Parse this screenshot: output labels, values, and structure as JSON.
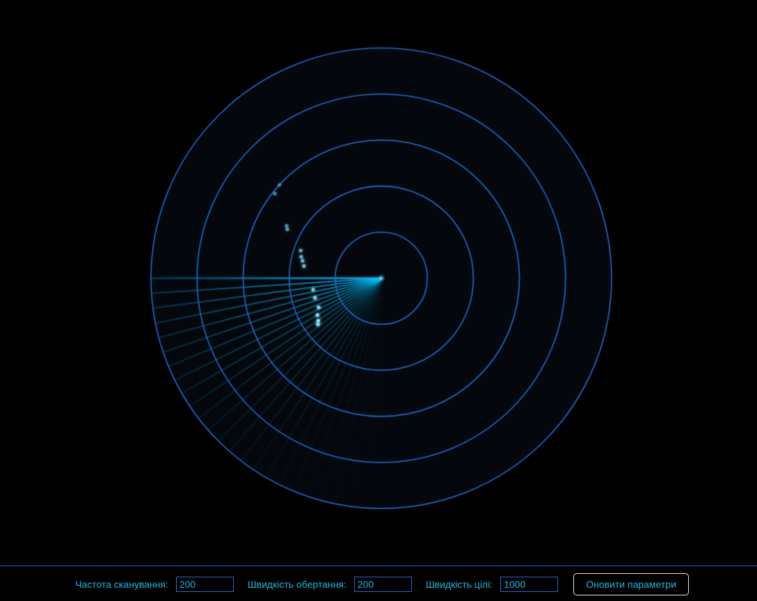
{
  "radar": {
    "ring_color": "#1e6fd9",
    "sweep_color": "#00bfff",
    "target_color": "#7fe4ff",
    "background": "#000000",
    "ring_count": 5,
    "sweep_heading_deg": 180,
    "sweep_trail_deg": 90,
    "sweep_ray_count": 24,
    "target_blips": [
      {
        "bearing_deg": 222.5,
        "range_frac": 0.6,
        "age": 0.9
      },
      {
        "bearing_deg": 218.5,
        "range_frac": 0.59,
        "age": 0.78
      },
      {
        "bearing_deg": 209.0,
        "range_frac": 0.47,
        "age": 0.7
      },
      {
        "bearing_deg": 207.5,
        "range_frac": 0.46,
        "age": 0.62
      },
      {
        "bearing_deg": 199.0,
        "range_frac": 0.37,
        "age": 0.52
      },
      {
        "bearing_deg": 195.0,
        "range_frac": 0.36,
        "age": 0.48
      },
      {
        "bearing_deg": 192.5,
        "range_frac": 0.35,
        "age": 0.42
      },
      {
        "bearing_deg": 189.0,
        "range_frac": 0.34,
        "age": 0.36
      },
      {
        "bearing_deg": 170.5,
        "range_frac": 0.3,
        "age": 0.28
      },
      {
        "bearing_deg": 163.5,
        "range_frac": 0.3,
        "age": 0.2
      },
      {
        "bearing_deg": 155.0,
        "range_frac": 0.3,
        "age": 0.12
      },
      {
        "bearing_deg": 150.0,
        "range_frac": 0.32,
        "age": 0.06
      },
      {
        "bearing_deg": 146.0,
        "range_frac": 0.33,
        "age": 0.02
      },
      {
        "bearing_deg": 144.0,
        "range_frac": 0.34,
        "age": 0.0
      }
    ]
  },
  "controls": {
    "scan_rate": {
      "label": "Частота сканування:",
      "value": "200"
    },
    "rotation_speed": {
      "label": "Швидкість обертання:",
      "value": "200"
    },
    "target_speed": {
      "label": "Швидкість цілі:",
      "value": "1000"
    },
    "update_button": "Оновити параметри"
  }
}
